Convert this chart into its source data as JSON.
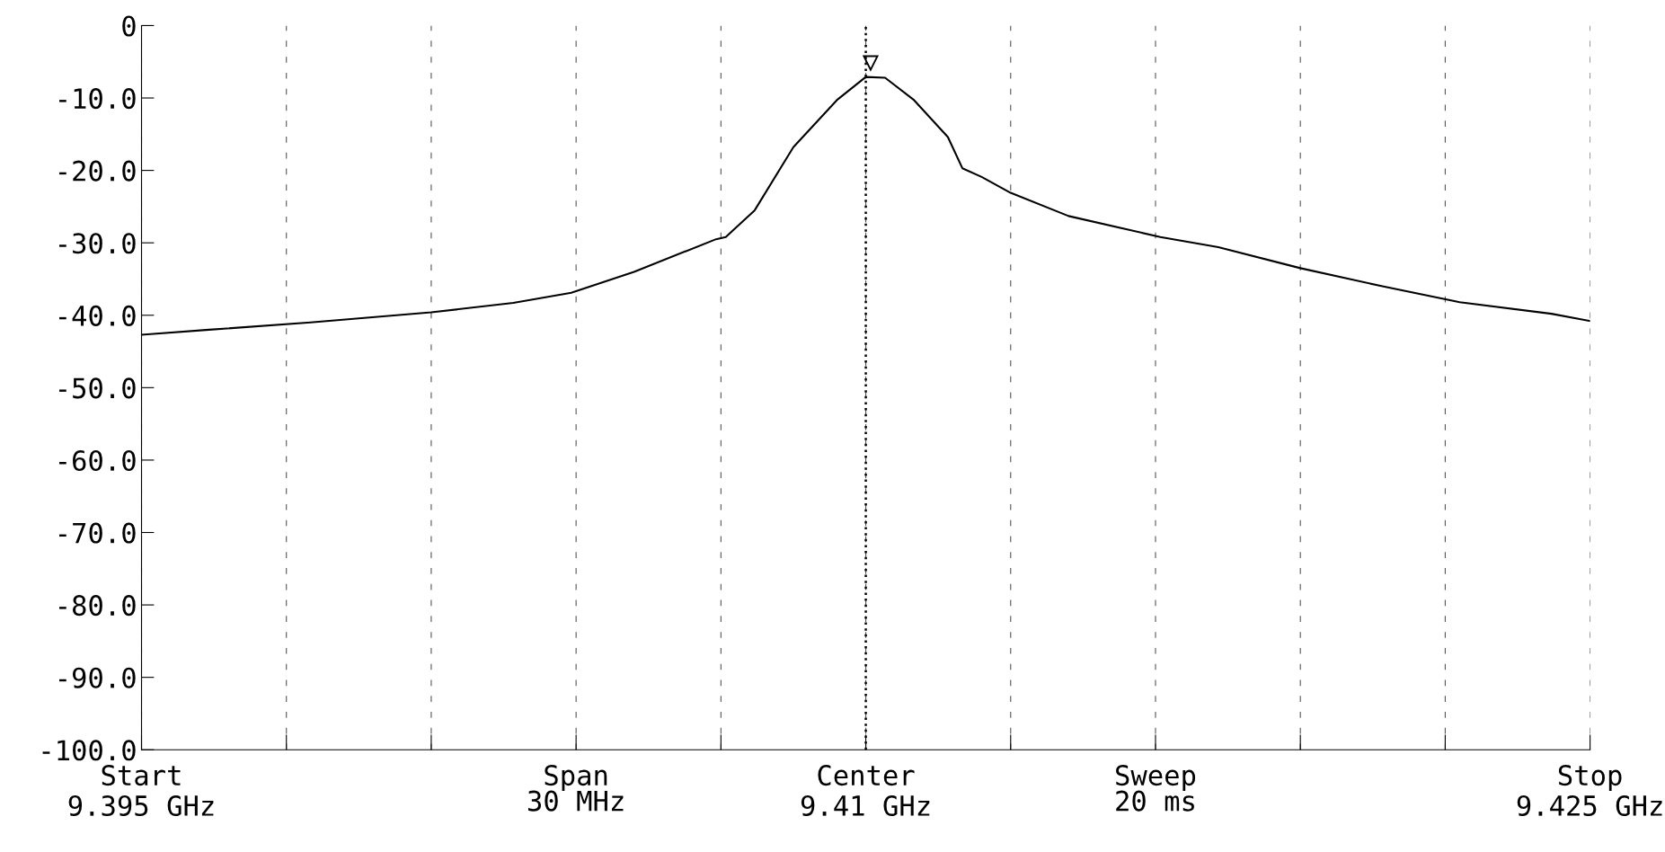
{
  "chart_data": {
    "type": "line",
    "x": [
      9.395,
      9.3964,
      9.3985,
      9.401,
      9.4027,
      9.4039,
      9.4052,
      9.4069,
      9.4071,
      9.4077,
      9.4085,
      9.4094,
      9.41,
      9.4104,
      9.411,
      9.4117,
      9.412,
      9.4124,
      9.413,
      9.4142,
      9.4161,
      9.4173,
      9.419,
      9.4207,
      9.4223,
      9.4242,
      9.425
    ],
    "series": [
      {
        "color": "#000000",
        "values": [
          -42.7,
          -42,
          -41,
          -39.6,
          -38.3,
          -36.9,
          -34,
          -29.5,
          -29.2,
          -25.5,
          -16.8,
          -10.3,
          -7.1,
          -7.2,
          -10.3,
          -15.4,
          -19.7,
          -20.9,
          -23.1,
          -26.3,
          -29.2,
          -30.6,
          -33.5,
          -36,
          -38.2,
          -39.8,
          -40.8
        ]
      }
    ],
    "xlim": [
      9.395,
      9.425
    ],
    "ylim": [
      -100,
      0
    ],
    "yticks": [
      0,
      {
        "value": -10,
        "label": "-10.0"
      },
      {
        "value": -20,
        "label": "-20.0"
      },
      {
        "value": -30,
        "label": "-30.0"
      },
      {
        "value": -40,
        "label": "-40.0"
      },
      {
        "value": -50,
        "label": "-50.0"
      },
      {
        "value": -60,
        "label": "-60.0"
      },
      {
        "value": -70,
        "label": "-70.0"
      },
      {
        "value": -80,
        "label": "-80.0"
      },
      {
        "value": -90,
        "label": "-90.0"
      },
      {
        "value": -100,
        "label": "-100.0"
      }
    ],
    "xticks": [
      {
        "value": 9.395,
        "label": "9.395 GHz"
      },
      {
        "value": 9.398,
        "label": null
      },
      {
        "value": 9.401,
        "label": null
      },
      {
        "value": 9.404,
        "label": null
      },
      {
        "value": 9.407,
        "label": null
      },
      {
        "value": 9.41,
        "label": "9.41 GHz"
      },
      {
        "value": 9.413,
        "label": null
      },
      {
        "value": 9.416,
        "label": null
      },
      {
        "value": 9.419,
        "label": null
      },
      {
        "value": 9.422,
        "label": null
      },
      {
        "value": 9.425,
        "label": "9.425 GHz"
      }
    ],
    "grid": "x",
    "legend": false,
    "marker": "none",
    "line_style": "solid",
    "ref_lines": [
      {
        "axis": "x",
        "value": 9.41,
        "line_style": "dotted",
        "color": "#000000"
      }
    ],
    "annotations": [
      {
        "text": "▽",
        "x": 9.4101,
        "y": -7
      },
      "Start",
      "Span\n30 MHz",
      "Center",
      "Sweep\n20 ms",
      "Stop"
    ]
  }
}
